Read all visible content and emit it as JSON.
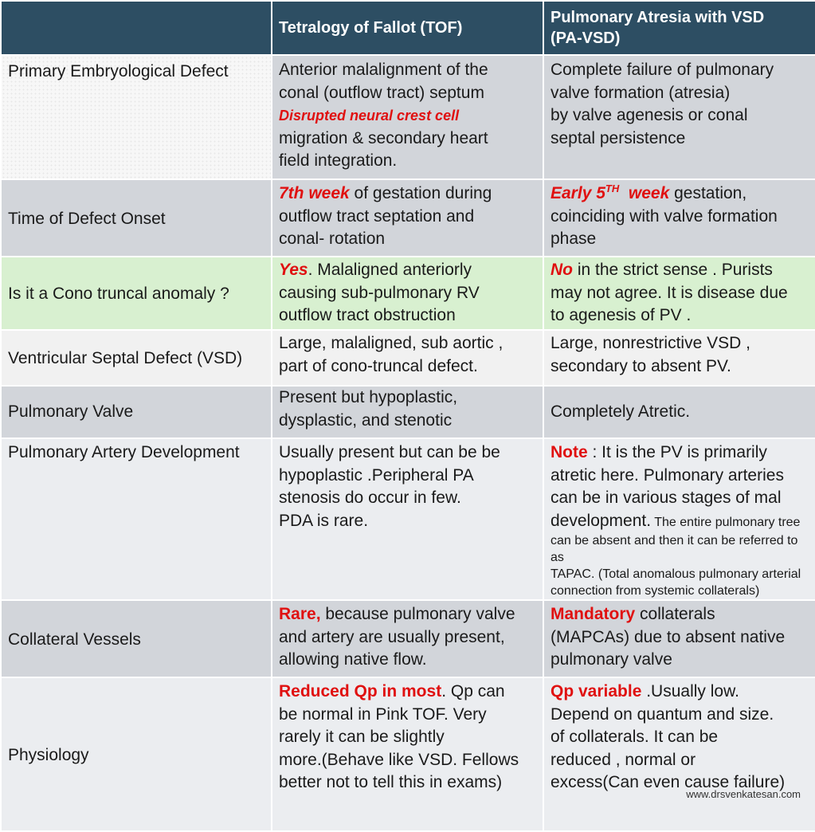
{
  "header": {
    "col1": "",
    "col2": "Tetralogy of Fallot (TOF)",
    "col3_line1": "Pulmonary Atresia with VSD",
    "col3_line2": "(PA-VSD)"
  },
  "rows": {
    "embryo": {
      "label": "Primary Embryological Defect",
      "tof_line1": "Anterior malalignment of the",
      "tof_line2": "conal (outflow tract) septum",
      "tof_red": "Disrupted neural crest cell",
      "tof_line3": "migration &  secondary heart",
      "tof_line4": "field integration.",
      "pa_line1": "Complete failure of pulmonary",
      "pa_line2": "valve formation (atresia)",
      "pa_line3": "by valve agenesis or conal",
      "pa_line4": "septal persistence"
    },
    "time": {
      "label": "Time of Defect Onset",
      "tof_red": "7th week",
      "tof_text1": " of gestation during",
      "tof_line2": "outflow tract septation and",
      "tof_line3": "conal- rotation",
      "pa_red": "Early 5",
      "pa_sup": "TH",
      "pa_red2": "  week",
      "pa_text1": " gestation,",
      "pa_line2": "coinciding with valve formation",
      "pa_line3": "phase"
    },
    "cono": {
      "label": "Is it a Cono truncal anomaly ?",
      "tof_red": "Yes",
      "tof_text1": ". Malaligned anteriorly",
      "tof_line2": "causing sub-pulmonary RV",
      "tof_line3": "outflow tract obstruction",
      "pa_red": "No",
      "pa_text1": " in the strict sense . Purists",
      "pa_line2": "may not agree. It is disease due",
      "pa_line3": "to agenesis of PV ."
    },
    "vsd": {
      "label": "Ventricular Septal Defect (VSD)",
      "tof_line1": "Large, malaligned, sub aortic ,",
      "tof_line2": "part of cono-truncal defect.",
      "pa_line1": "Large, nonrestrictive VSD ,",
      "pa_line2": "secondary to absent PV."
    },
    "pv": {
      "label": "Pulmonary Valve",
      "tof_line1": "Present but hypoplastic,",
      "tof_line2": "dysplastic, and stenotic",
      "pa_line1": "Completely Atretic."
    },
    "pa": {
      "label": "Pulmonary Artery Development",
      "tof_line1": "Usually present but can be be",
      "tof_line2": "hypoplastic .Peripheral PA",
      "tof_line3": "stenosis do occur in few.",
      "tof_line4": "PDA is rare.",
      "pa_red": "Note",
      "pa_text1": " : It is the PV is primarily",
      "pa_line2": "atretic here. Pulmonary arteries",
      "pa_line3": "can be in various stages of mal",
      "pa_line4": "development.",
      "pa_small1": " The entire pulmonary tree",
      "pa_small2": "can be absent and then it can be referred to as",
      "pa_small3": "TAPAC. (Total anomalous pulmonary arterial",
      "pa_small4": "connection from systemic collaterals)"
    },
    "coll": {
      "label": "Collateral Vessels",
      "tof_red": "Rare,",
      "tof_text1": " because pulmonary valve",
      "tof_line2": "and artery are usually present,",
      "tof_line3": "allowing native flow.",
      "pa_red": "Mandatory",
      "pa_text1": " collaterals",
      "pa_line2": "(MAPCAs) due to absent native",
      "pa_line3": "pulmonary valve"
    },
    "phys": {
      "label": "Physiology",
      "tof_red": "Reduced Qp in most",
      "tof_text1": ". Qp can",
      "tof_line2": "be normal in Pink TOF. Very",
      "tof_line3": "rarely it can be slightly",
      "tof_line4": "more.(Behave like VSD. Fellows",
      "tof_line5": "better not to tell this in exams)",
      "pa_red": "Qp variable",
      "pa_text1": " .Usually low.",
      "pa_line2": "Depend on quantum and size.",
      "pa_line3": "of collaterals.  It can be",
      "pa_line4": "reduced , normal or",
      "pa_line5": "excess(Can even cause failure)"
    }
  },
  "footer": "www.drsvenkatesan.com"
}
